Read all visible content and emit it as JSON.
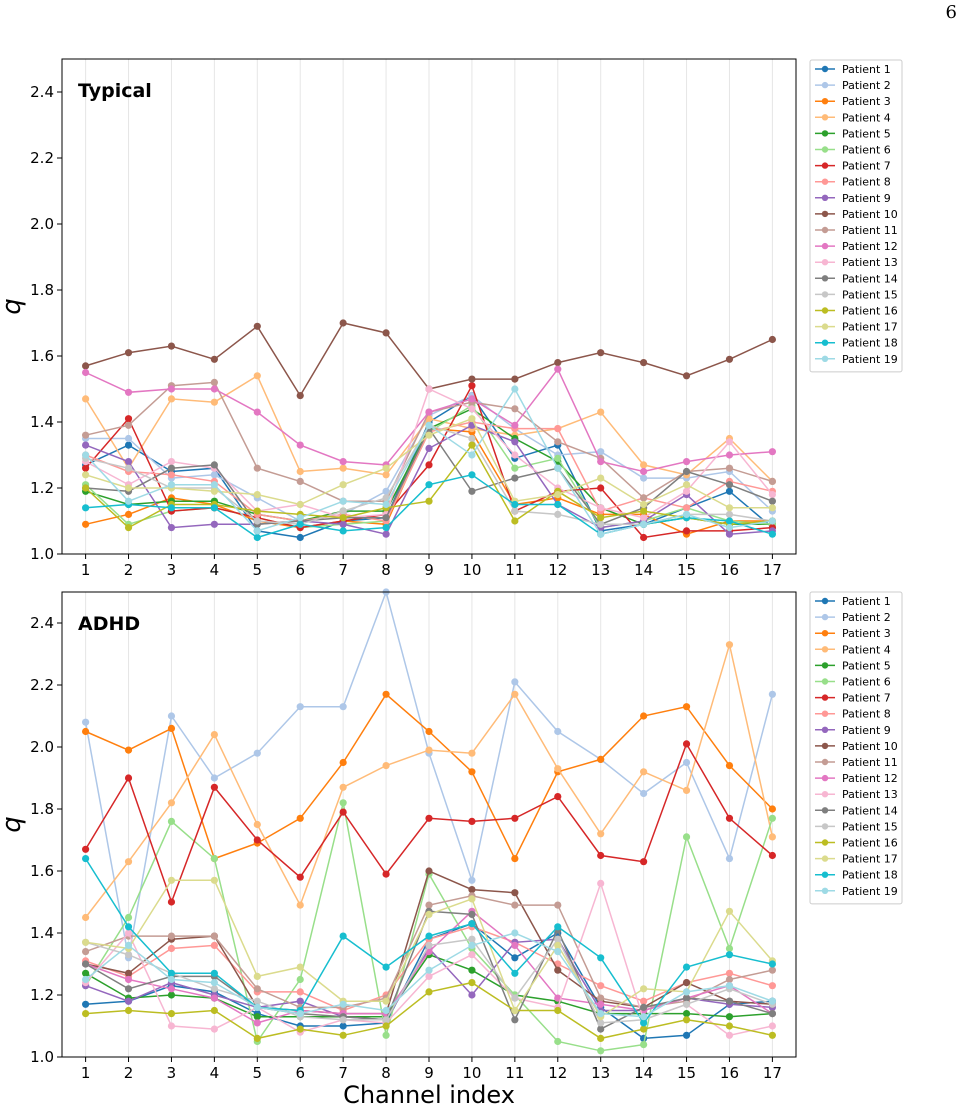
{
  "page": {
    "number": "6"
  },
  "shared": {
    "xlabel": "Channel index",
    "ylabel": "q",
    "colors": [
      "#1f77b4",
      "#aec7e8",
      "#ff7f0e",
      "#ffbb78",
      "#2ca02c",
      "#98df8a",
      "#d62728",
      "#ff9896",
      "#9467bd",
      "#8c564b",
      "#c49c94",
      "#e377c2",
      "#f7b6d2",
      "#7f7f7f",
      "#c7c7c7",
      "#bcbd22",
      "#dbdb8d",
      "#17becf",
      "#9edae5"
    ]
  },
  "chart_data": [
    {
      "type": "line",
      "annotation": "Typical",
      "ylabel": "q",
      "xlabel": "",
      "x": [
        1,
        2,
        3,
        4,
        5,
        6,
        7,
        8,
        9,
        10,
        11,
        12,
        13,
        14,
        15,
        16,
        17
      ],
      "ylim": [
        1.0,
        2.5
      ],
      "yticks": [
        1.0,
        1.2,
        1.4,
        1.6,
        1.8,
        2.0,
        2.2,
        2.4
      ],
      "grid": "vertical",
      "legend": "outside-right",
      "series": [
        {
          "name": "Patient 1",
          "values": [
            1.27,
            1.33,
            1.25,
            1.26,
            1.07,
            1.05,
            1.1,
            1.11,
            1.4,
            1.48,
            1.29,
            1.33,
            1.07,
            1.09,
            1.14,
            1.19,
            1.08
          ]
        },
        {
          "name": "Patient 2",
          "values": [
            1.35,
            1.35,
            1.23,
            1.24,
            1.17,
            1.1,
            1.12,
            1.19,
            1.42,
            1.48,
            1.38,
            1.3,
            1.31,
            1.23,
            1.23,
            1.25,
            1.13
          ]
        },
        {
          "name": "Patient 3",
          "values": [
            1.09,
            1.12,
            1.17,
            1.15,
            1.1,
            1.08,
            1.1,
            1.09,
            1.38,
            1.37,
            1.15,
            1.17,
            1.12,
            1.12,
            1.06,
            1.1,
            1.1
          ]
        },
        {
          "name": "Patient 4",
          "values": [
            1.47,
            1.26,
            1.47,
            1.46,
            1.54,
            1.25,
            1.26,
            1.24,
            1.41,
            1.38,
            1.36,
            1.38,
            1.43,
            1.27,
            1.24,
            1.35,
            1.22
          ]
        },
        {
          "name": "Patient 5",
          "values": [
            1.19,
            1.15,
            1.16,
            1.16,
            1.12,
            1.1,
            1.13,
            1.13,
            1.38,
            1.44,
            1.35,
            1.28,
            1.14,
            1.09,
            1.11,
            1.09,
            1.09
          ]
        },
        {
          "name": "Patient 6",
          "values": [
            1.21,
            1.09,
            1.13,
            1.14,
            1.11,
            1.08,
            1.09,
            1.1,
            1.37,
            1.45,
            1.26,
            1.29,
            1.08,
            1.1,
            1.14,
            1.1,
            1.09
          ]
        },
        {
          "name": "Patient 7",
          "values": [
            1.26,
            1.41,
            1.13,
            1.14,
            1.11,
            1.08,
            1.1,
            1.12,
            1.27,
            1.51,
            1.13,
            1.19,
            1.2,
            1.05,
            1.07,
            1.07,
            1.08
          ]
        },
        {
          "name": "Patient 8",
          "values": [
            1.3,
            1.25,
            1.24,
            1.22,
            1.12,
            1.1,
            1.12,
            1.1,
            1.37,
            1.4,
            1.38,
            1.38,
            1.13,
            1.17,
            1.14,
            1.22,
            1.19
          ]
        },
        {
          "name": "Patient 9",
          "values": [
            1.33,
            1.28,
            1.08,
            1.09,
            1.09,
            1.1,
            1.09,
            1.06,
            1.32,
            1.39,
            1.34,
            1.15,
            1.08,
            1.1,
            1.18,
            1.06,
            1.07
          ]
        },
        {
          "name": "Patient 10",
          "values": [
            1.57,
            1.61,
            1.63,
            1.59,
            1.69,
            1.48,
            1.7,
            1.67,
            1.5,
            1.53,
            1.53,
            1.58,
            1.61,
            1.58,
            1.54,
            1.59,
            1.65
          ]
        },
        {
          "name": "Patient 11",
          "values": [
            1.36,
            1.39,
            1.51,
            1.52,
            1.26,
            1.22,
            1.16,
            1.16,
            1.43,
            1.46,
            1.44,
            1.34,
            1.29,
            1.17,
            1.25,
            1.26,
            1.22
          ]
        },
        {
          "name": "Patient 12",
          "values": [
            1.55,
            1.49,
            1.5,
            1.5,
            1.43,
            1.33,
            1.28,
            1.27,
            1.43,
            1.47,
            1.39,
            1.56,
            1.28,
            1.25,
            1.28,
            1.3,
            1.31
          ]
        },
        {
          "name": "Patient 13",
          "values": [
            1.28,
            1.21,
            1.28,
            1.26,
            1.13,
            1.15,
            1.11,
            1.12,
            1.5,
            1.44,
            1.3,
            1.2,
            1.14,
            1.11,
            1.19,
            1.34,
            1.18
          ]
        },
        {
          "name": "Patient 14",
          "values": [
            1.2,
            1.19,
            1.26,
            1.27,
            1.09,
            1.1,
            1.11,
            1.11,
            1.38,
            1.19,
            1.23,
            1.26,
            1.09,
            1.14,
            1.25,
            1.21,
            1.16
          ]
        },
        {
          "name": "Patient 15",
          "values": [
            1.29,
            1.26,
            1.2,
            1.2,
            1.1,
            1.09,
            1.13,
            1.17,
            1.39,
            1.35,
            1.13,
            1.12,
            1.09,
            1.09,
            1.12,
            1.12,
            1.1
          ]
        },
        {
          "name": "Patient 16",
          "values": [
            1.2,
            1.08,
            1.15,
            1.15,
            1.13,
            1.12,
            1.11,
            1.14,
            1.16,
            1.33,
            1.1,
            1.19,
            1.11,
            1.13,
            1.11,
            1.09,
            1.1
          ]
        },
        {
          "name": "Patient 17",
          "values": [
            1.24,
            1.2,
            1.2,
            1.19,
            1.18,
            1.15,
            1.21,
            1.26,
            1.36,
            1.41,
            1.16,
            1.18,
            1.23,
            1.15,
            1.21,
            1.14,
            1.14
          ]
        },
        {
          "name": "Patient 18",
          "values": [
            1.14,
            1.15,
            1.14,
            1.14,
            1.05,
            1.09,
            1.07,
            1.08,
            1.21,
            1.24,
            1.15,
            1.15,
            1.06,
            1.09,
            1.11,
            1.1,
            1.06
          ]
        },
        {
          "name": "Patient 19",
          "values": [
            1.3,
            1.16,
            1.21,
            1.21,
            1.07,
            1.11,
            1.16,
            1.15,
            1.39,
            1.3,
            1.5,
            1.26,
            1.06,
            1.09,
            1.12,
            1.08,
            1.1
          ]
        }
      ]
    },
    {
      "type": "line",
      "annotation": "ADHD",
      "ylabel": "q",
      "xlabel": "Channel index",
      "x": [
        1,
        2,
        3,
        4,
        5,
        6,
        7,
        8,
        9,
        10,
        11,
        12,
        13,
        14,
        15,
        16,
        17
      ],
      "ylim": [
        1.0,
        2.5
      ],
      "yticks": [
        1.0,
        1.2,
        1.4,
        1.6,
        1.8,
        2.0,
        2.2,
        2.4
      ],
      "grid": "vertical",
      "legend": "outside-right",
      "series": [
        {
          "name": "Patient 1",
          "values": [
            1.17,
            1.18,
            1.23,
            1.21,
            1.14,
            1.1,
            1.1,
            1.11,
            1.38,
            1.43,
            1.32,
            1.4,
            1.16,
            1.06,
            1.07,
            1.17,
            1.18
          ]
        },
        {
          "name": "Patient 2",
          "values": [
            2.08,
            1.32,
            2.1,
            1.9,
            1.98,
            2.13,
            2.13,
            2.5,
            1.98,
            1.57,
            2.21,
            2.05,
            1.96,
            1.85,
            1.95,
            1.64,
            2.17
          ]
        },
        {
          "name": "Patient 3",
          "values": [
            2.05,
            1.99,
            2.06,
            1.64,
            1.69,
            1.77,
            1.95,
            2.17,
            2.05,
            1.92,
            1.64,
            1.92,
            1.96,
            2.1,
            2.13,
            1.94,
            1.8
          ]
        },
        {
          "name": "Patient 4",
          "values": [
            1.45,
            1.63,
            1.82,
            2.04,
            1.75,
            1.49,
            1.87,
            1.94,
            1.99,
            1.98,
            2.17,
            1.93,
            1.72,
            1.92,
            1.86,
            2.33,
            1.71
          ]
        },
        {
          "name": "Patient 5",
          "values": [
            1.27,
            1.19,
            1.2,
            1.19,
            1.13,
            1.13,
            1.13,
            1.13,
            1.33,
            1.28,
            1.2,
            1.18,
            1.14,
            1.14,
            1.14,
            1.13,
            1.14
          ]
        },
        {
          "name": "Patient 6",
          "values": [
            1.23,
            1.45,
            1.76,
            1.64,
            1.05,
            1.25,
            1.82,
            1.07,
            1.59,
            1.35,
            1.2,
            1.05,
            1.02,
            1.04,
            1.71,
            1.35,
            1.77
          ]
        },
        {
          "name": "Patient 7",
          "values": [
            1.67,
            1.9,
            1.5,
            1.87,
            1.7,
            1.58,
            1.79,
            1.59,
            1.77,
            1.76,
            1.77,
            1.84,
            1.65,
            1.63,
            2.01,
            1.77,
            1.65
          ]
        },
        {
          "name": "Patient 8",
          "values": [
            1.31,
            1.26,
            1.35,
            1.36,
            1.21,
            1.21,
            1.15,
            1.2,
            1.38,
            1.42,
            1.37,
            1.3,
            1.23,
            1.18,
            1.24,
            1.27,
            1.23
          ]
        },
        {
          "name": "Patient 9",
          "values": [
            1.23,
            1.18,
            1.24,
            1.2,
            1.16,
            1.18,
            1.13,
            1.12,
            1.35,
            1.2,
            1.37,
            1.38,
            1.15,
            1.15,
            1.19,
            1.17,
            1.16
          ]
        },
        {
          "name": "Patient 10",
          "values": [
            1.3,
            1.27,
            1.38,
            1.39,
            1.16,
            1.15,
            1.14,
            1.14,
            1.6,
            1.54,
            1.53,
            1.28,
            1.18,
            1.16,
            1.24,
            1.18,
            1.17
          ]
        },
        {
          "name": "Patient 11",
          "values": [
            1.34,
            1.39,
            1.39,
            1.39,
            1.22,
            1.16,
            1.16,
            1.19,
            1.49,
            1.52,
            1.49,
            1.49,
            1.19,
            1.16,
            1.18,
            1.25,
            1.28
          ]
        },
        {
          "name": "Patient 12",
          "values": [
            1.3,
            1.25,
            1.22,
            1.19,
            1.11,
            1.15,
            1.14,
            1.14,
            1.34,
            1.47,
            1.36,
            1.19,
            1.17,
            1.15,
            1.19,
            1.23,
            1.14
          ]
        },
        {
          "name": "Patient 13",
          "values": [
            1.24,
            1.4,
            1.1,
            1.09,
            1.16,
            1.08,
            1.12,
            1.11,
            1.26,
            1.33,
            1.19,
            1.16,
            1.56,
            1.12,
            1.17,
            1.07,
            1.1
          ]
        },
        {
          "name": "Patient 14",
          "values": [
            1.3,
            1.22,
            1.26,
            1.26,
            1.16,
            1.14,
            1.13,
            1.12,
            1.47,
            1.46,
            1.12,
            1.41,
            1.09,
            1.16,
            1.19,
            1.18,
            1.14
          ]
        },
        {
          "name": "Patient 15",
          "values": [
            1.37,
            1.33,
            1.27,
            1.22,
            1.18,
            1.13,
            1.12,
            1.12,
            1.36,
            1.38,
            1.19,
            1.38,
            1.11,
            1.12,
            1.17,
            1.22,
            1.17
          ]
        },
        {
          "name": "Patient 16",
          "values": [
            1.14,
            1.15,
            1.14,
            1.15,
            1.06,
            1.09,
            1.07,
            1.1,
            1.21,
            1.24,
            1.15,
            1.15,
            1.06,
            1.09,
            1.12,
            1.1,
            1.07
          ]
        },
        {
          "name": "Patient 17",
          "values": [
            1.37,
            1.35,
            1.57,
            1.57,
            1.26,
            1.29,
            1.18,
            1.18,
            1.46,
            1.51,
            1.15,
            1.36,
            1.13,
            1.22,
            1.21,
            1.47,
            1.31
          ]
        },
        {
          "name": "Patient 18",
          "values": [
            1.64,
            1.42,
            1.27,
            1.27,
            1.16,
            1.15,
            1.39,
            1.29,
            1.39,
            1.43,
            1.27,
            1.42,
            1.32,
            1.11,
            1.29,
            1.33,
            1.3
          ]
        },
        {
          "name": "Patient 19",
          "values": [
            1.25,
            1.36,
            1.25,
            1.24,
            1.16,
            1.14,
            1.17,
            1.15,
            1.28,
            1.36,
            1.4,
            1.34,
            1.14,
            1.13,
            1.21,
            1.23,
            1.18
          ]
        }
      ]
    }
  ]
}
